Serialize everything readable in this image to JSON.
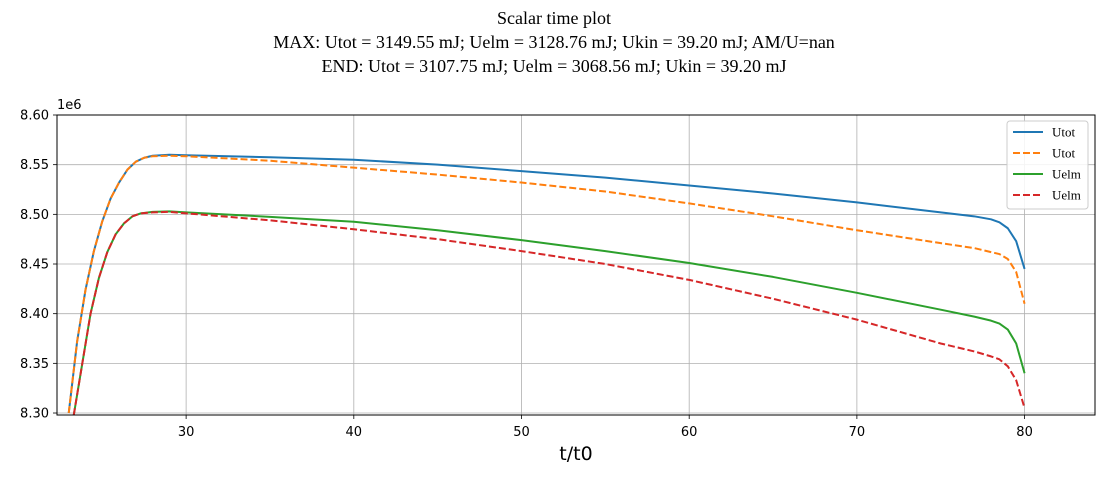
{
  "chart_data": {
    "type": "line",
    "title": "Scalar time plot",
    "subtitle_lines": [
      "MAX: Utot = 3149.55 mJ;  Uelm = 3128.76 mJ; Ukin = 39.20 mJ;  AM/U=nan",
      "END: Utot = 3107.75 mJ;  Uelm = 3068.56 mJ;  Ukin = 39.20 mJ"
    ],
    "xlabel": "t/t0",
    "ylabel": "",
    "y_offset_label": "1e6",
    "xlim": [
      22.3,
      84.2
    ],
    "ylim": [
      8.298,
      8.6
    ],
    "x_ticks": [
      30,
      40,
      50,
      60,
      70,
      80
    ],
    "y_ticks": [
      8.3,
      8.35,
      8.4,
      8.45,
      8.5,
      8.55,
      8.6
    ],
    "grid": true,
    "legend_position": "top-right",
    "series": [
      {
        "name": "Utot",
        "color": "#1f77b4",
        "dash": "solid",
        "points": [
          [
            23.0,
            8.3
          ],
          [
            23.5,
            8.372
          ],
          [
            24.0,
            8.424
          ],
          [
            24.5,
            8.463
          ],
          [
            25.0,
            8.493
          ],
          [
            25.5,
            8.516
          ],
          [
            26.0,
            8.532
          ],
          [
            26.5,
            8.545
          ],
          [
            27.0,
            8.553
          ],
          [
            27.5,
            8.557
          ],
          [
            28.0,
            8.559
          ],
          [
            29.0,
            8.56
          ],
          [
            30.0,
            8.5595
          ],
          [
            35.0,
            8.5575
          ],
          [
            40.0,
            8.555
          ],
          [
            45.0,
            8.55
          ],
          [
            50.0,
            8.5435
          ],
          [
            55.0,
            8.537
          ],
          [
            60.0,
            8.529
          ],
          [
            65.0,
            8.521
          ],
          [
            70.0,
            8.512
          ],
          [
            75.0,
            8.502
          ],
          [
            77.0,
            8.498
          ],
          [
            78.0,
            8.495
          ],
          [
            78.5,
            8.492
          ],
          [
            79.0,
            8.486
          ],
          [
            79.5,
            8.473
          ],
          [
            80.0,
            8.445
          ]
        ]
      },
      {
        "name": "Utot",
        "color": "#ff7f0e",
        "dash": "dashed",
        "points": [
          [
            23.0,
            8.3
          ],
          [
            23.5,
            8.372
          ],
          [
            24.0,
            8.424
          ],
          [
            24.5,
            8.463
          ],
          [
            25.0,
            8.493
          ],
          [
            25.5,
            8.516
          ],
          [
            26.0,
            8.532
          ],
          [
            26.5,
            8.545
          ],
          [
            27.0,
            8.553
          ],
          [
            27.5,
            8.557
          ],
          [
            28.0,
            8.5585
          ],
          [
            29.0,
            8.559
          ],
          [
            30.0,
            8.5585
          ],
          [
            35.0,
            8.554
          ],
          [
            40.0,
            8.547
          ],
          [
            45.0,
            8.54
          ],
          [
            50.0,
            8.532
          ],
          [
            55.0,
            8.523
          ],
          [
            60.0,
            8.511
          ],
          [
            65.0,
            8.498
          ],
          [
            70.0,
            8.484
          ],
          [
            75.0,
            8.471
          ],
          [
            77.0,
            8.466
          ],
          [
            78.0,
            8.462
          ],
          [
            78.5,
            8.46
          ],
          [
            79.0,
            8.455
          ],
          [
            79.5,
            8.442
          ],
          [
            80.0,
            8.41
          ]
        ]
      },
      {
        "name": "Uelm",
        "color": "#2ca02c",
        "dash": "solid",
        "points": [
          [
            23.3,
            8.298
          ],
          [
            23.8,
            8.349
          ],
          [
            24.3,
            8.4
          ],
          [
            24.8,
            8.436
          ],
          [
            25.3,
            8.462
          ],
          [
            25.8,
            8.48
          ],
          [
            26.3,
            8.491
          ],
          [
            26.8,
            8.498
          ],
          [
            27.3,
            8.501
          ],
          [
            28.0,
            8.5025
          ],
          [
            29.0,
            8.503
          ],
          [
            30.0,
            8.502
          ],
          [
            35.0,
            8.4975
          ],
          [
            40.0,
            8.4925
          ],
          [
            45.0,
            8.484
          ],
          [
            50.0,
            8.474
          ],
          [
            55.0,
            8.463
          ],
          [
            60.0,
            8.451
          ],
          [
            65.0,
            8.437
          ],
          [
            70.0,
            8.421
          ],
          [
            75.0,
            8.404
          ],
          [
            77.0,
            8.397
          ],
          [
            78.0,
            8.393
          ],
          [
            78.5,
            8.39
          ],
          [
            79.0,
            8.384
          ],
          [
            79.5,
            8.37
          ],
          [
            80.0,
            8.34
          ]
        ]
      },
      {
        "name": "Uelm",
        "color": "#d62728",
        "dash": "dashed",
        "points": [
          [
            23.3,
            8.298
          ],
          [
            23.8,
            8.349
          ],
          [
            24.3,
            8.4
          ],
          [
            24.8,
            8.436
          ],
          [
            25.3,
            8.462
          ],
          [
            25.8,
            8.48
          ],
          [
            26.3,
            8.491
          ],
          [
            26.8,
            8.498
          ],
          [
            27.3,
            8.501
          ],
          [
            28.0,
            8.502
          ],
          [
            29.0,
            8.5025
          ],
          [
            30.0,
            8.501
          ],
          [
            35.0,
            8.494
          ],
          [
            40.0,
            8.485
          ],
          [
            45.0,
            8.475
          ],
          [
            50.0,
            8.463
          ],
          [
            55.0,
            8.45
          ],
          [
            60.0,
            8.434
          ],
          [
            65.0,
            8.415
          ],
          [
            70.0,
            8.394
          ],
          [
            75.0,
            8.37
          ],
          [
            77.0,
            8.362
          ],
          [
            78.0,
            8.357
          ],
          [
            78.5,
            8.354
          ],
          [
            79.0,
            8.347
          ],
          [
            79.5,
            8.333
          ],
          [
            80.0,
            8.305
          ]
        ]
      }
    ]
  }
}
